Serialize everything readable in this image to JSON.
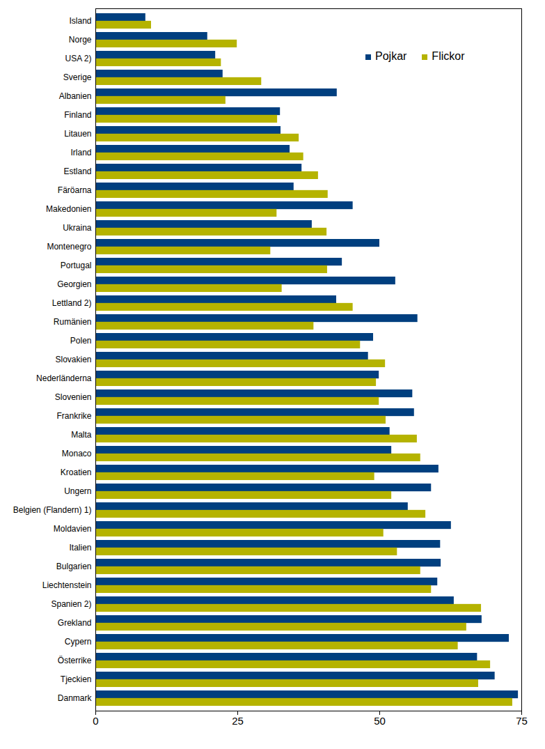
{
  "chart_data": {
    "type": "bar",
    "orientation": "horizontal",
    "legend": "top-right",
    "grid": false,
    "categories": [
      "Island",
      "Norge",
      "USA 2)",
      "Sverige",
      "Albanien",
      "Finland",
      "Litauen",
      "Irland",
      "Estland",
      "Färöarna",
      "Makedonien",
      "Ukraina",
      "Montenegro",
      "Portugal",
      "Georgien",
      "Lettland 2)",
      "Rumänien",
      "Polen",
      "Slovakien",
      "Nederländerna",
      "Slovenien",
      "Frankrike",
      "Malta",
      "Monaco",
      "Kroatien",
      "Ungern",
      "Belgien (Flandern) 1)",
      "Moldavien",
      "Italien",
      "Bulgarien",
      "Liechtenstein",
      "Spanien 2)",
      "Grekland",
      "Cypern",
      "Österrike",
      "Tjeckien",
      "Danmark"
    ],
    "series": [
      {
        "name": "Pojkar",
        "color": "#003f7f",
        "values": [
          8.8,
          19.7,
          21.1,
          22.4,
          42.5,
          32.5,
          32.6,
          34.2,
          36.3,
          34.9,
          45.3,
          38.1,
          50.0,
          43.4,
          52.8,
          42.4,
          56.7,
          48.9,
          48.0,
          49.9,
          55.8,
          56.1,
          51.8,
          52.1,
          60.4,
          59.1,
          55.0,
          62.6,
          60.7,
          60.8,
          60.2,
          63.1,
          68.0,
          72.8,
          67.2,
          70.3,
          74.4
        ]
      },
      {
        "name": "Flickor",
        "color": "#b5b300",
        "values": [
          9.8,
          24.9,
          22.1,
          29.2,
          22.9,
          32.0,
          35.8,
          36.6,
          39.2,
          40.9,
          31.9,
          40.7,
          30.8,
          40.8,
          32.8,
          45.3,
          38.4,
          46.6,
          51.0,
          49.4,
          49.9,
          51.1,
          56.6,
          57.2,
          49.1,
          52.1,
          58.1,
          50.7,
          53.1,
          57.2,
          59.1,
          67.9,
          65.3,
          63.8,
          69.5,
          67.4,
          73.4
        ]
      }
    ],
    "xlim": [
      0,
      75
    ],
    "xticks": [
      0,
      25,
      50,
      75
    ]
  }
}
